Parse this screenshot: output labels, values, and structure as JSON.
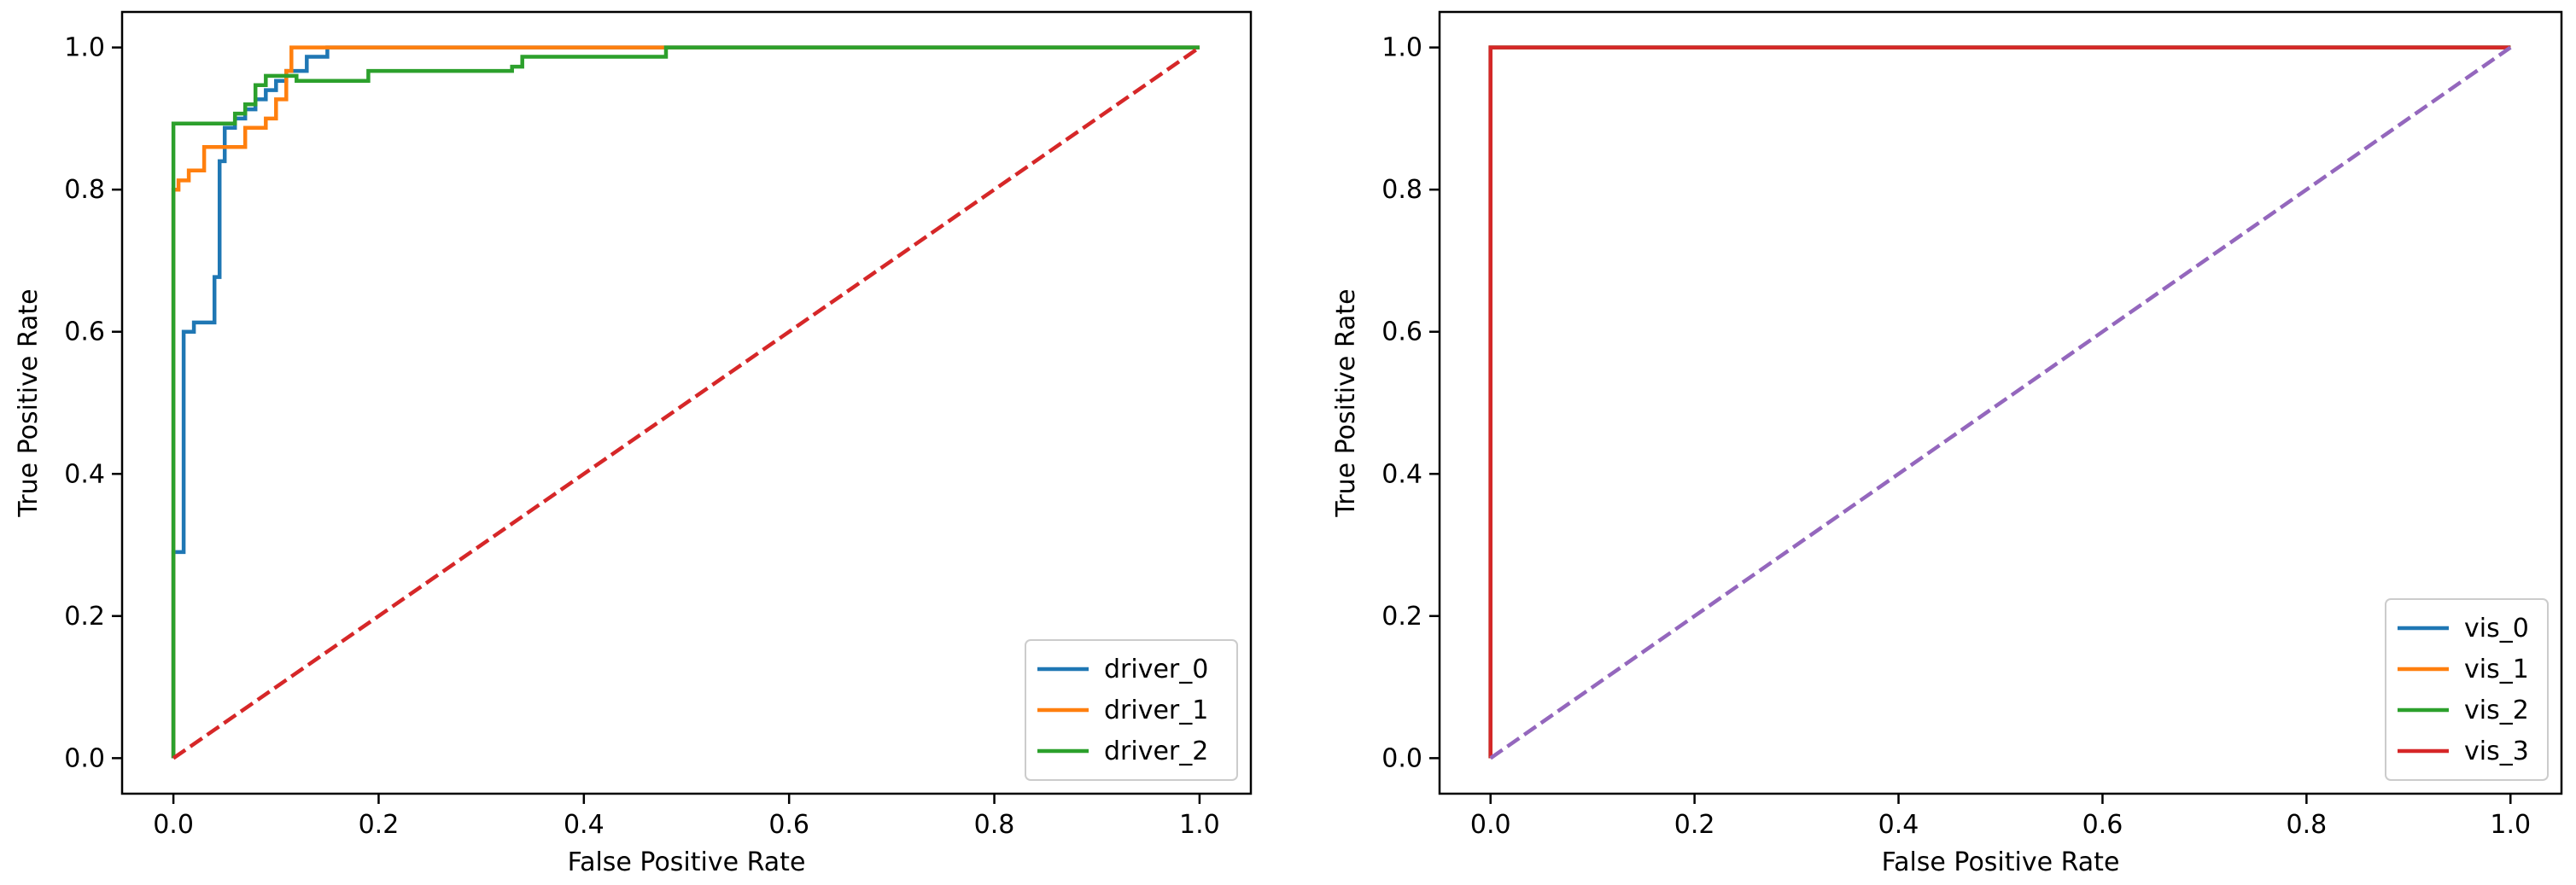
{
  "chart_data": [
    {
      "type": "line",
      "title": "",
      "xlabel": "False Positive Rate",
      "ylabel": "True Positive Rate",
      "xlim": [
        -0.05,
        1.05
      ],
      "ylim": [
        -0.05,
        1.05
      ],
      "xticks": [
        "0.0",
        "0.2",
        "0.4",
        "0.6",
        "0.8",
        "1.0"
      ],
      "yticks": [
        "0.0",
        "0.2",
        "0.4",
        "0.6",
        "0.8",
        "1.0"
      ],
      "grid": false,
      "legend_position": "lower-right",
      "series": [
        {
          "name": "driver_0",
          "color": "#1f77b4",
          "points": [
            [
              0,
              0
            ],
            [
              0,
              0.29
            ],
            [
              0.01,
              0.29
            ],
            [
              0.01,
              0.6
            ],
            [
              0.02,
              0.6
            ],
            [
              0.02,
              0.613
            ],
            [
              0.04,
              0.613
            ],
            [
              0.04,
              0.677
            ],
            [
              0.045,
              0.677
            ],
            [
              0.045,
              0.84
            ],
            [
              0.05,
              0.84
            ],
            [
              0.05,
              0.887
            ],
            [
              0.06,
              0.887
            ],
            [
              0.06,
              0.9
            ],
            [
              0.07,
              0.9
            ],
            [
              0.07,
              0.913
            ],
            [
              0.08,
              0.913
            ],
            [
              0.08,
              0.927
            ],
            [
              0.09,
              0.927
            ],
            [
              0.09,
              0.94
            ],
            [
              0.1,
              0.94
            ],
            [
              0.1,
              0.953
            ],
            [
              0.11,
              0.953
            ],
            [
              0.11,
              0.967
            ],
            [
              0.13,
              0.967
            ],
            [
              0.13,
              0.987
            ],
            [
              0.15,
              0.987
            ],
            [
              0.15,
              1.0
            ],
            [
              0.48,
              1.0
            ],
            [
              1.0,
              1.0
            ]
          ]
        },
        {
          "name": "driver_1",
          "color": "#ff7f0e",
          "points": [
            [
              0,
              0
            ],
            [
              0,
              0.8
            ],
            [
              0.005,
              0.8
            ],
            [
              0.005,
              0.813
            ],
            [
              0.015,
              0.813
            ],
            [
              0.015,
              0.827
            ],
            [
              0.03,
              0.827
            ],
            [
              0.03,
              0.86
            ],
            [
              0.07,
              0.86
            ],
            [
              0.07,
              0.887
            ],
            [
              0.09,
              0.887
            ],
            [
              0.09,
              0.9
            ],
            [
              0.1,
              0.9
            ],
            [
              0.1,
              0.927
            ],
            [
              0.11,
              0.927
            ],
            [
              0.11,
              0.967
            ],
            [
              0.115,
              0.967
            ],
            [
              0.115,
              1.0
            ],
            [
              1.0,
              1.0
            ]
          ]
        },
        {
          "name": "driver_2",
          "color": "#2ca02c",
          "points": [
            [
              0,
              0
            ],
            [
              0,
              0.893
            ],
            [
              0.06,
              0.893
            ],
            [
              0.06,
              0.907
            ],
            [
              0.07,
              0.907
            ],
            [
              0.07,
              0.92
            ],
            [
              0.08,
              0.92
            ],
            [
              0.08,
              0.947
            ],
            [
              0.09,
              0.947
            ],
            [
              0.09,
              0.96
            ],
            [
              0.12,
              0.96
            ],
            [
              0.12,
              0.953
            ],
            [
              0.19,
              0.953
            ],
            [
              0.19,
              0.967
            ],
            [
              0.33,
              0.967
            ],
            [
              0.33,
              0.973
            ],
            [
              0.34,
              0.973
            ],
            [
              0.34,
              0.987
            ],
            [
              0.48,
              0.987
            ],
            [
              0.48,
              1.0
            ],
            [
              1.0,
              1.0
            ]
          ]
        },
        {
          "name": "",
          "color": "#d62728",
          "dashed": true,
          "points": [
            [
              0,
              0
            ],
            [
              1,
              1
            ]
          ]
        }
      ]
    },
    {
      "type": "line",
      "title": "",
      "xlabel": "False Positive Rate",
      "ylabel": "True Positive Rate",
      "xlim": [
        -0.05,
        1.05
      ],
      "ylim": [
        -0.05,
        1.05
      ],
      "xticks": [
        "0.0",
        "0.2",
        "0.4",
        "0.6",
        "0.8",
        "1.0"
      ],
      "yticks": [
        "0.0",
        "0.2",
        "0.4",
        "0.6",
        "0.8",
        "1.0"
      ],
      "grid": false,
      "legend_position": "lower-right",
      "series": [
        {
          "name": "vis_0",
          "color": "#1f77b4",
          "points": [
            [
              0,
              0
            ],
            [
              0,
              1
            ],
            [
              1,
              1
            ]
          ]
        },
        {
          "name": "vis_1",
          "color": "#ff7f0e",
          "points": [
            [
              0,
              0
            ],
            [
              0,
              1
            ],
            [
              1,
              1
            ]
          ]
        },
        {
          "name": "vis_2",
          "color": "#2ca02c",
          "points": [
            [
              0,
              0
            ],
            [
              0,
              1
            ],
            [
              1,
              1
            ]
          ]
        },
        {
          "name": "vis_3",
          "color": "#d62728",
          "points": [
            [
              0,
              0
            ],
            [
              0,
              1
            ],
            [
              1,
              1
            ]
          ]
        },
        {
          "name": "",
          "color": "#9467bd",
          "dashed": true,
          "points": [
            [
              0,
              0
            ],
            [
              1,
              1
            ]
          ]
        }
      ]
    }
  ]
}
